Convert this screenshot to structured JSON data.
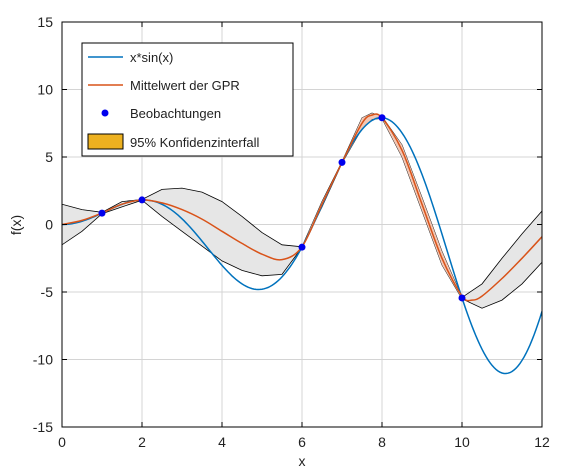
{
  "chart_data": {
    "type": "line",
    "title": "",
    "xlabel": "x",
    "ylabel": "f(x)",
    "xlim": [
      0,
      12
    ],
    "ylim": [
      -15,
      15
    ],
    "xticks": [
      0,
      2,
      4,
      6,
      8,
      10,
      12
    ],
    "yticks": [
      -15,
      -10,
      -5,
      0,
      5,
      10,
      15
    ],
    "grid": true,
    "legend_position": "top-left",
    "legend": [
      "x*sin(x)",
      "Mittelwert der GPR",
      "Beobachtungen",
      "95% Konfidenzinterfall"
    ],
    "series": [
      {
        "name": "x*sin(x)",
        "kind": "line",
        "color": "#0072BD",
        "function": "x*sin(x)",
        "x": [
          0,
          12
        ]
      },
      {
        "name": "Mittelwert der GPR",
        "kind": "line",
        "color": "#D95319",
        "x": [
          0,
          0.5,
          1,
          1.5,
          2,
          2.5,
          3,
          3.5,
          4,
          4.5,
          5,
          5.5,
          6,
          6.5,
          7,
          7.5,
          7.75,
          8,
          8.5,
          9,
          9.5,
          10,
          10.25,
          10.5,
          11,
          11.5,
          12
        ],
        "y": [
          0,
          0.3,
          0.85,
          1.5,
          1.82,
          1.6,
          1.1,
          0.4,
          -0.5,
          -1.4,
          -2.2,
          -2.6,
          -1.65,
          1.5,
          4.6,
          7.5,
          8.1,
          7.9,
          5.5,
          1.5,
          -2.5,
          -5.3,
          -5.6,
          -5.3,
          -4.0,
          -2.5,
          -0.9
        ]
      },
      {
        "name": "Beobachtungen",
        "kind": "scatter",
        "color": "#0000EE",
        "x": [
          1,
          2,
          6,
          7,
          8,
          10
        ],
        "y": [
          0.84,
          1.82,
          -1.68,
          4.6,
          7.91,
          -5.44
        ]
      },
      {
        "name": "95% Konfidenzinterfall",
        "kind": "band",
        "fill": "#EDB120",
        "fill_outside": "#E6E6E6",
        "x": [
          0,
          0.5,
          1,
          1.5,
          2,
          2.5,
          3,
          3.5,
          4,
          4.5,
          5,
          5.5,
          6,
          6.5,
          7,
          7.5,
          7.75,
          8,
          8.5,
          9,
          9.5,
          10,
          10.5,
          11,
          11.5,
          12
        ],
        "upper": [
          1.5,
          1.1,
          0.9,
          1.7,
          1.85,
          2.6,
          2.7,
          2.4,
          1.7,
          0.6,
          -0.6,
          -1.5,
          -1.65,
          1.7,
          4.65,
          7.9,
          8.25,
          8.0,
          5.9,
          2.0,
          -2.0,
          -5.4,
          -4.4,
          -2.5,
          -0.7,
          1.0
        ],
        "lower": [
          -1.5,
          -0.5,
          0.8,
          1.3,
          1.8,
          0.6,
          -0.5,
          -1.6,
          -2.7,
          -3.4,
          -3.8,
          -3.7,
          -1.7,
          1.3,
          4.55,
          7.1,
          7.8,
          7.85,
          5.0,
          1.0,
          -3.0,
          -5.5,
          -6.2,
          -5.6,
          -4.4,
          -2.8
        ]
      }
    ]
  }
}
